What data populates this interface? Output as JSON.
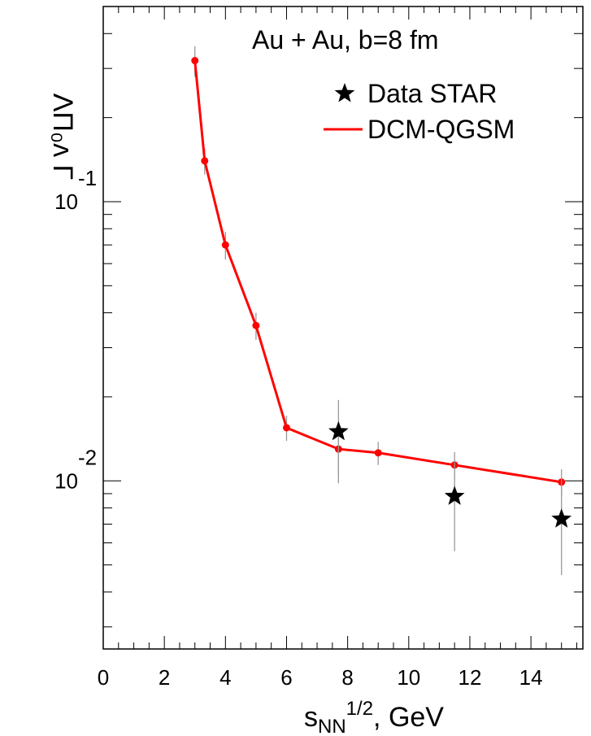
{
  "chart_data": {
    "type": "line",
    "annotation": "Au + Au, b=8 fm",
    "xlabel": {
      "base": "s",
      "subscript": "NN",
      "superscript": "1/2",
      "rest": ", GeV"
    },
    "ylabel": {
      "prefix": "Λ",
      "supers": "0",
      "subs": "",
      "middle": "Λ̅ Λ",
      "unit": "Γ"
    },
    "ylabel_text": "ΛΠ₀ᴧ Γ",
    "xlim": [
      0,
      15.7
    ],
    "ylim_log": [
      0.0025,
      0.5
    ],
    "y_scale": "log",
    "x_ticks": [
      0,
      2,
      4,
      6,
      8,
      10,
      12,
      14
    ],
    "x_tick_labels": [
      "0",
      "2",
      "4",
      "6",
      "8",
      "10",
      "12",
      "14"
    ],
    "y_major_ticks": [
      {
        "value": 0.1,
        "base": "10",
        "exp": "-1"
      },
      {
        "value": 0.01,
        "base": "10",
        "exp": "-2"
      }
    ],
    "legend": [
      {
        "label": "Data STAR",
        "marker": "star"
      },
      {
        "label": "DCM-QGSM",
        "marker": "line"
      }
    ],
    "legend_position": "top-right",
    "series": [
      {
        "name": "DCM-QGSM",
        "color": "#ff0000",
        "x": [
          3.0,
          3.32,
          4.0,
          5.0,
          6.0,
          7.7,
          9.0,
          11.5,
          15.0
        ],
        "y": [
          0.32,
          0.14,
          0.07,
          0.036,
          0.0155,
          0.013,
          0.0126,
          0.0114,
          0.0099
        ],
        "err_up": [
          0.04,
          0.015,
          0.008,
          0.004,
          0.0016,
          0.0017,
          0.0012,
          0.0013,
          0.0011
        ],
        "err_down": [
          0.04,
          0.015,
          0.008,
          0.004,
          0.0016,
          0.0032,
          0.0012,
          0.0013,
          0.0011
        ]
      },
      {
        "name": "Data STAR",
        "color": "#000000",
        "x": [
          7.7,
          11.5,
          15.0
        ],
        "y": [
          0.015,
          0.0088,
          0.0073
        ],
        "err_up": [
          0.0045,
          0.003,
          0.003
        ],
        "err_down": [
          0.0045,
          0.0032,
          0.0027
        ]
      }
    ]
  }
}
